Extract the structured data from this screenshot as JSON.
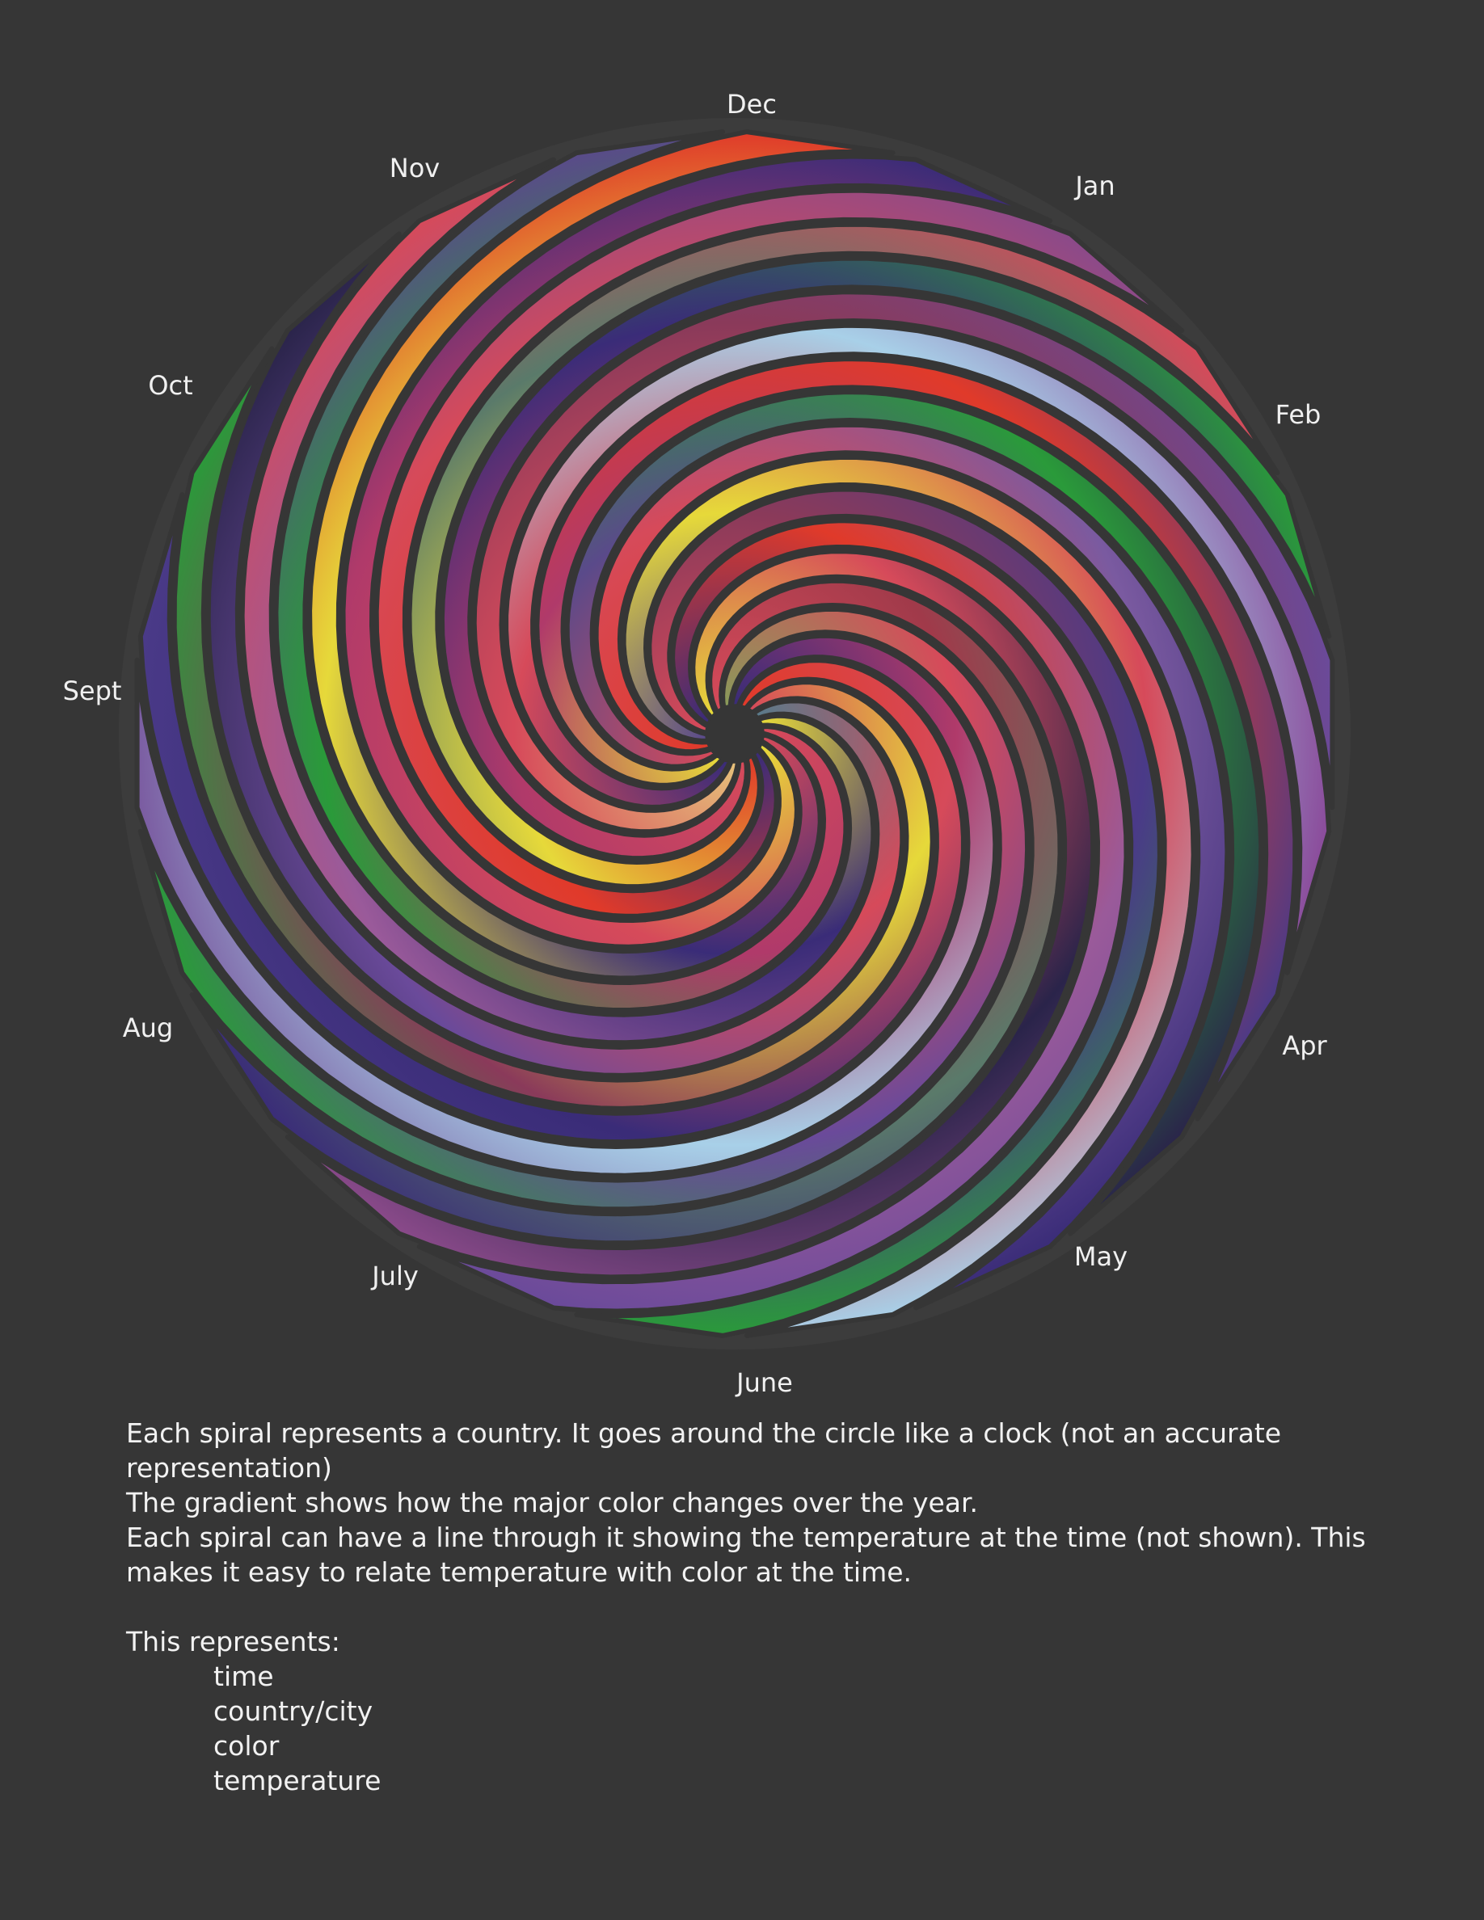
{
  "diagram": {
    "background_color": "#363636",
    "months": [
      "Dec",
      "Jan",
      "Feb",
      "Apr",
      "May",
      "June",
      "July",
      "Aug",
      "Sept",
      "Oct",
      "Nov"
    ],
    "spirals": [
      {
        "colors": [
          "#d64a5a",
          "#3a2c78",
          "#e6d93a",
          "#e03a2a"
        ]
      },
      {
        "colors": [
          "#e6d93a",
          "#d64a5a",
          "#b03a6a",
          "#3a2c78"
        ]
      },
      {
        "colors": [
          "#3a2c78",
          "#e03a2a",
          "#d64a5a",
          "#8a4a8a"
        ]
      },
      {
        "colors": [
          "#e03a2a",
          "#e6d93a",
          "#5a7a6a",
          "#d64a5a"
        ]
      },
      {
        "colors": [
          "#d64a5a",
          "#b03a6a",
          "#3a2c78",
          "#2a9a3a"
        ]
      },
      {
        "colors": [
          "#e6c07a",
          "#d64a5a",
          "#8a3a5a",
          "#6a4a9a"
        ]
      },
      {
        "colors": [
          "#3a2c78",
          "#d64a5a",
          "#a8d0e8",
          "#8a4a9a"
        ]
      },
      {
        "colors": [
          "#e6d93a",
          "#b03a6a",
          "#e03a2a",
          "#4a3a88"
        ]
      },
      {
        "colors": [
          "#d64a5a",
          "#5a4a8a",
          "#2a9a3a",
          "#2a244a"
        ]
      },
      {
        "colors": [
          "#e03a2a",
          "#d64a5a",
          "#7a5aa0",
          "#3a2c78"
        ]
      },
      {
        "colors": [
          "#5a4a8a",
          "#e6d93a",
          "#d64a5a",
          "#a8d0e8"
        ]
      },
      {
        "colors": [
          "#d64a5a",
          "#8a3a5a",
          "#4a3a88",
          "#2a9a3a"
        ]
      },
      {
        "colors": [
          "#3a2c78",
          "#e03a2a",
          "#9a5a9a",
          "#6a4a9a"
        ]
      },
      {
        "colors": [
          "#e6d93a",
          "#d64a5a",
          "#2a244a",
          "#8a4a8a"
        ]
      },
      {
        "colors": [
          "#d64a5a",
          "#a03a4a",
          "#5a7a6a",
          "#3a2c78"
        ]
      },
      {
        "colors": [
          "#8a9a5a",
          "#d64a5a",
          "#6a4a9a",
          "#2a9a3a"
        ]
      },
      {
        "colors": [
          "#3a2c78",
          "#b03a6a",
          "#a8d0e8",
          "#7a5aa0"
        ]
      },
      {
        "colors": [
          "#e03a2a",
          "#d64a5a",
          "#3a2c78",
          "#4a3a88"
        ]
      },
      {
        "colors": [
          "#d64a5a",
          "#e6d93a",
          "#8a3a5a",
          "#2a9a3a"
        ]
      },
      {
        "colors": [
          "#5a7a8a",
          "#d64a5a",
          "#6a4a9a",
          "#2a244a"
        ]
      },
      {
        "colors": [
          "#e6d93a",
          "#3a2c78",
          "#9a5a9a",
          "#d64a5a"
        ]
      },
      {
        "colors": [
          "#d64a5a",
          "#b03a6a",
          "#2a9a3a",
          "#5a4a8a"
        ]
      }
    ]
  },
  "description": {
    "paragraph_1": "Each spiral represents a country. It goes around the circle like a clock (not an accurate representation)",
    "paragraph_2": "The gradient shows how the major color changes over the year.",
    "paragraph_3": "Each spiral can have a line through it showing the temperature at the time (not shown). This makes it easy to relate temperature with color at the time.",
    "represents_title": "This represents:",
    "represents_items": [
      "time",
      "country/city",
      "color",
      "temperature"
    ]
  }
}
